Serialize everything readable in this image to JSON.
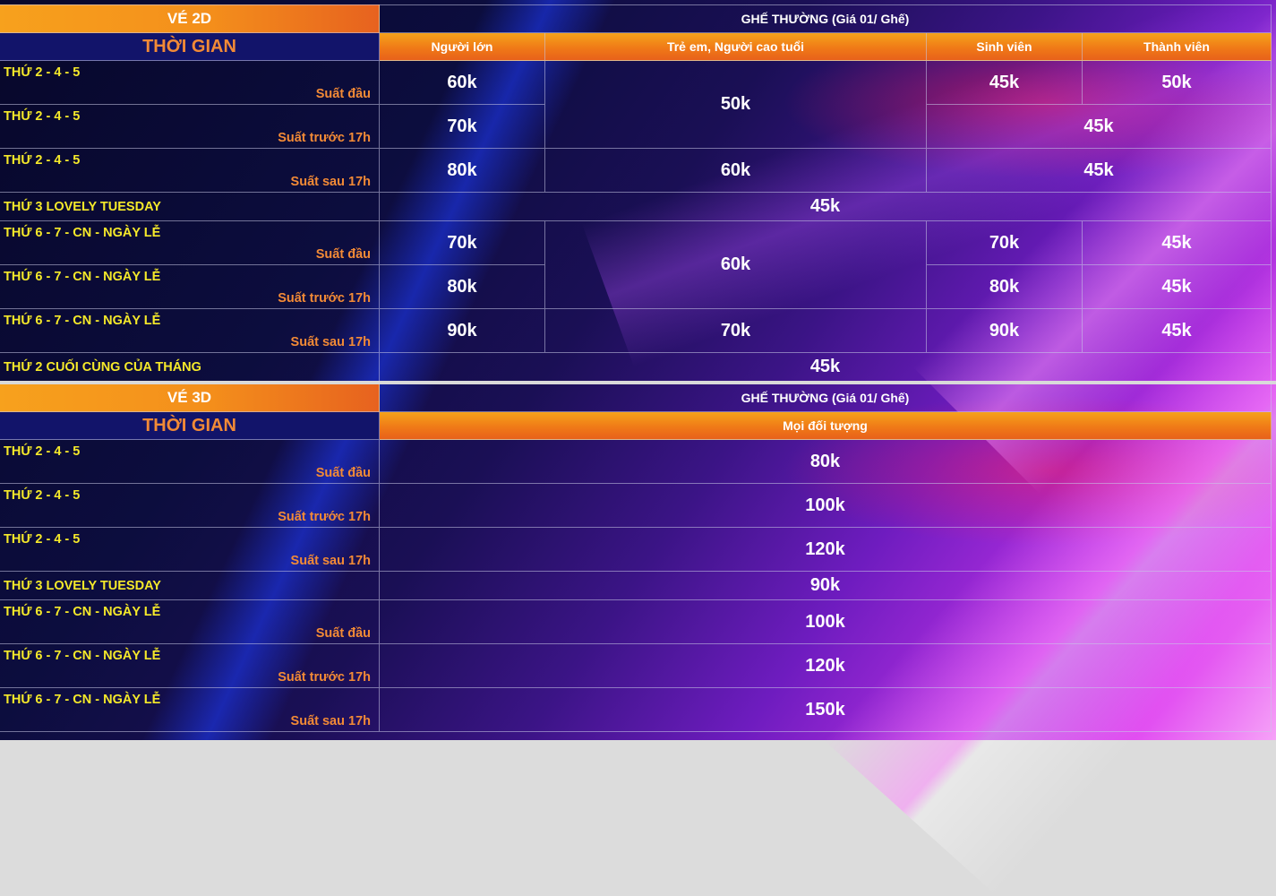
{
  "t2d": {
    "ve_label": "VÉ 2D",
    "ghe_label": "GHẾ THƯỜNG (Giá 01/ Ghế)",
    "thoi_gian_label": "THỜI GIAN",
    "headers": [
      "Người lớn",
      "Trẻ em, Người cao tuổi",
      "Sinh viên",
      "Thành viên"
    ],
    "rows": [
      {
        "day": "THỨ 2 - 4 - 5",
        "slot": "Suất đầu"
      },
      {
        "day": "THỨ 2 - 4 - 5",
        "slot": "Suất trước 17h"
      },
      {
        "day": "THỨ 2 - 4 - 5",
        "slot": "Suất sau 17h"
      },
      {
        "day": "THỨ 3 LOVELY TUESDAY",
        "slot": ""
      },
      {
        "day": "THỨ 6 - 7 - CN - NGÀY LỄ",
        "slot": "Suất đầu"
      },
      {
        "day": "THỨ 6 - 7 - CN - NGÀY LỄ",
        "slot": "Suất trước 17h"
      },
      {
        "day": "THỨ 6 - 7 - CN - NGÀY LỄ",
        "slot": "Suất sau 17h"
      },
      {
        "day": "THỨ 2 CUỐI CÙNG CỦA THÁNG",
        "slot": ""
      }
    ],
    "prices": {
      "r0_adult": "60k",
      "r01_child": "50k",
      "r0_student": "45k",
      "r0_member": "50k",
      "r1_adult": "70k",
      "r12_student_member": "45k",
      "r2_adult": "80k",
      "r2_child": "60k",
      "r3_all": "45k",
      "r4_adult": "70k",
      "r45_child": "60k",
      "r4_student": "70k",
      "r4_member": "45k",
      "r5_adult": "80k",
      "r5_student": "80k",
      "r5_member": "45k",
      "r6_adult": "90k",
      "r6_child": "70k",
      "r6_student": "90k",
      "r6_member": "45k",
      "r7_all": "45k"
    }
  },
  "t3d": {
    "ve_label": "VÉ 3D",
    "ghe_label": "GHẾ THƯỜNG (Giá 01/ Ghế)",
    "thoi_gian_label": "THỜI GIAN",
    "header_all": "Mọi đối tượng",
    "rows": [
      {
        "day": "THỨ 2 - 4 - 5",
        "slot": "Suất đầu",
        "price": "80k"
      },
      {
        "day": "THỨ 2 - 4 - 5",
        "slot": "Suất trước 17h",
        "price": "100k"
      },
      {
        "day": "THỨ 2 - 4 - 5",
        "slot": "Suất sau 17h",
        "price": "120k"
      },
      {
        "day": "THỨ 3 LOVELY TUESDAY",
        "slot": "",
        "price": "90k"
      },
      {
        "day": "THỨ 6 - 7 - CN - NGÀY LỄ",
        "slot": "Suất đầu",
        "price": "100k"
      },
      {
        "day": "THỨ 6 - 7 - CN - NGÀY LỄ",
        "slot": "Suất trước 17h",
        "price": "120k"
      },
      {
        "day": "THỨ 6 - 7 - CN - NGÀY LỄ",
        "slot": "Suất sau 17h",
        "price": "150k"
      }
    ]
  }
}
